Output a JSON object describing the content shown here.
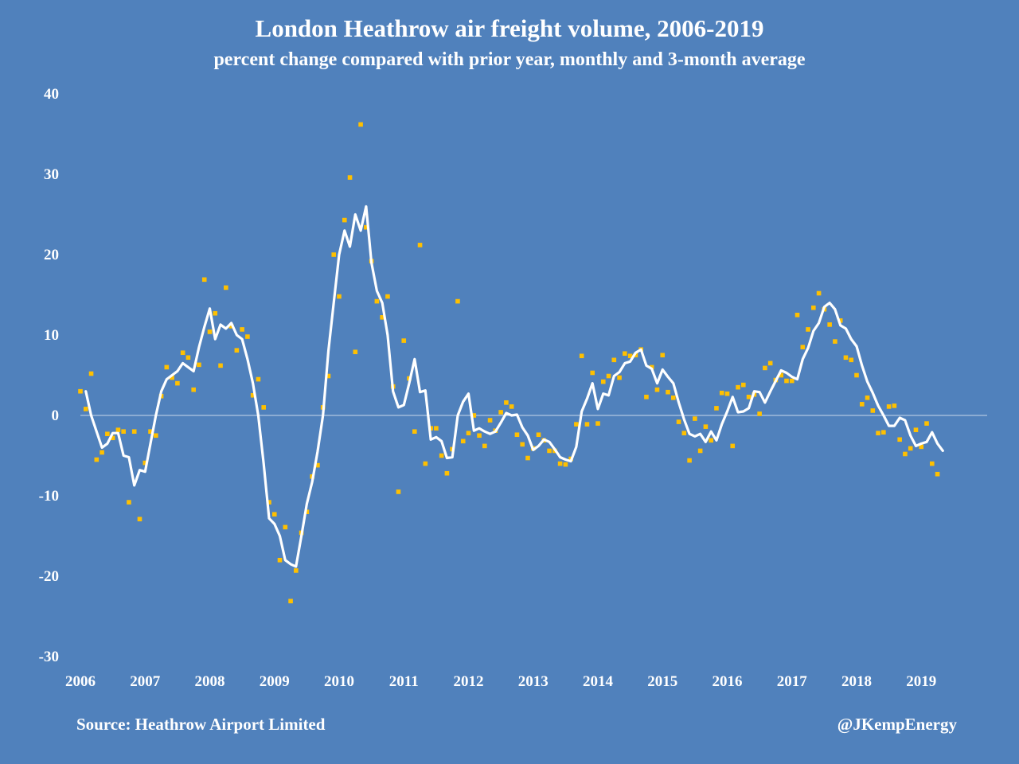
{
  "header": {
    "title": "London Heathrow air freight volume, 2006-2019",
    "subtitle": "percent change compared with prior year, monthly and 3-month average"
  },
  "footer": {
    "source": "Source: Heathrow Airport Limited",
    "credit": "@JKempEnergy"
  },
  "colors": {
    "background": "#5081BC",
    "line": "#ffffff",
    "points": "#FFC000",
    "zero_line": "#c9d6ea"
  },
  "chart_data": {
    "type": "line",
    "title": "London Heathrow air freight volume, 2006-2019",
    "subtitle": "percent change compared with prior year, monthly and 3-month average",
    "xlabel": "",
    "ylabel": "",
    "ylim": [
      -30,
      40
    ],
    "yticks": [
      40,
      30,
      20,
      10,
      0,
      -10,
      -20,
      -30
    ],
    "xlim": [
      2006,
      2020
    ],
    "xticks": [
      2006,
      2007,
      2008,
      2009,
      2010,
      2011,
      2012,
      2013,
      2014,
      2015,
      2016,
      2017,
      2018,
      2019
    ],
    "grid": false,
    "legend": "none",
    "series": [
      {
        "style": "points",
        "color": "#FFC000",
        "start": "2006-01",
        "values": [
          3,
          0.8,
          5.2,
          -5.5,
          -4.6,
          -2.3,
          -2.8,
          -1.8,
          -2,
          -10.8,
          -2,
          -12.9,
          -5.9,
          -2,
          -2.5,
          2.4,
          6,
          4.7,
          4,
          7.8,
          7.2,
          3.2,
          6.3,
          16.9,
          10.4,
          12.7,
          6.2,
          15.9,
          11.1,
          8.1,
          10.7,
          9.8,
          2.5,
          4.5,
          1,
          -10.8,
          -12.3,
          -18,
          -13.9,
          -23.1,
          -19.3,
          -14.6,
          -12,
          -7.6,
          -6.2,
          1,
          4.9,
          20,
          14.8,
          24.3,
          29.6,
          7.9,
          36.2,
          23.4,
          19.2,
          14.2,
          12.2,
          14.8,
          3.6,
          -9.5,
          9.3,
          4.6,
          -2,
          21.2,
          -6,
          -1.6,
          -1.6,
          -5,
          -7.2,
          -4.2,
          14.2,
          -3.2,
          -2.2,
          0,
          -2.5,
          -3.8,
          -0.6,
          -1.9,
          0.4,
          1.6,
          1.1,
          -2.4,
          -3.6,
          -5.3,
          -4.1,
          -2.4,
          -3.1,
          -4.4,
          -4.4,
          -6,
          -6.1,
          -5.4,
          -1.1,
          7.4,
          -1.1,
          5.3,
          -1,
          4.2,
          4.9,
          6.9,
          4.7,
          7.7,
          7.4,
          7.5,
          8.2,
          2.3,
          6,
          3.2,
          7.5,
          2.9,
          2.2,
          -0.8,
          -2.2,
          -5.6,
          -0.4,
          -4.4,
          -1.4,
          -3.1,
          0.9,
          2.8,
          2.7,
          -3.8,
          3.5,
          3.8,
          2.3,
          2.6,
          0.2,
          5.9,
          6.5,
          4.4,
          5,
          4.3,
          4.3,
          12.5,
          8.5,
          10.7,
          13.4,
          15.2,
          13.2,
          11.3,
          9.2,
          11.8,
          7.2,
          6.9,
          5,
          1.4,
          2.2,
          0.6,
          -2.2,
          -2.1,
          1.1,
          1.2,
          -3,
          -4.8,
          -4.1,
          -1.8,
          -3.9,
          -1,
          -6,
          -7.3
        ]
      },
      {
        "style": "line",
        "color": "#ffffff",
        "start": "2006-02",
        "values": [
          3,
          0,
          -2,
          -4,
          -3.5,
          -2.2,
          -2.2,
          -5,
          -5.2,
          -8.7,
          -6.8,
          -7,
          -3.5,
          0,
          3,
          4.5,
          5,
          5.5,
          6.5,
          6,
          5.5,
          8.5,
          11,
          13.3,
          9.5,
          11.3,
          10.8,
          11.5,
          10,
          9.5,
          7,
          4,
          0,
          -6,
          -12.8,
          -13.5,
          -15,
          -18,
          -18.5,
          -18.8,
          -15,
          -11,
          -8.3,
          -4.5,
          0,
          8,
          14,
          20,
          23,
          21,
          25,
          23,
          26,
          19,
          15.5,
          14,
          10,
          3,
          1,
          1.3,
          4,
          7,
          2.9,
          3.1,
          -3,
          -2.7,
          -3.2,
          -5.3,
          -5.2,
          0,
          1.7,
          2.7,
          -1.9,
          -1.6,
          -2,
          -2.3,
          -2,
          -0.9,
          0.3,
          0,
          0.1,
          -1.5,
          -2.5,
          -4.3,
          -3.8,
          -3,
          -3.3,
          -4.2,
          -5.2,
          -5.5,
          -5.7,
          -3.9,
          0.5,
          2.1,
          4,
          0.8,
          2.7,
          2.5,
          4.9,
          5.4,
          6.5,
          6.7,
          7.8,
          8.2,
          6.2,
          5.8,
          4,
          5.7,
          4.8,
          4,
          1.6,
          -0.5,
          -2.3,
          -2.6,
          -2.3,
          -3.3,
          -2,
          -3.1,
          -1.1,
          0.5,
          2.3,
          0.4,
          0.5,
          0.9,
          3,
          2.9,
          1.6,
          3,
          4.3,
          5.6,
          5.3,
          4.8,
          4.5,
          7,
          8.4,
          10.5,
          11.5,
          13.5,
          14,
          13.2,
          11.2,
          10.8,
          9.5,
          8.6,
          6.2,
          4.2,
          2.8,
          1.2,
          0,
          -1.3,
          -1.3,
          -0.3,
          -0.6,
          -2.5,
          -3.8,
          -3.5,
          -3.3,
          -2.1,
          -3.5,
          -4.4
        ]
      }
    ]
  }
}
